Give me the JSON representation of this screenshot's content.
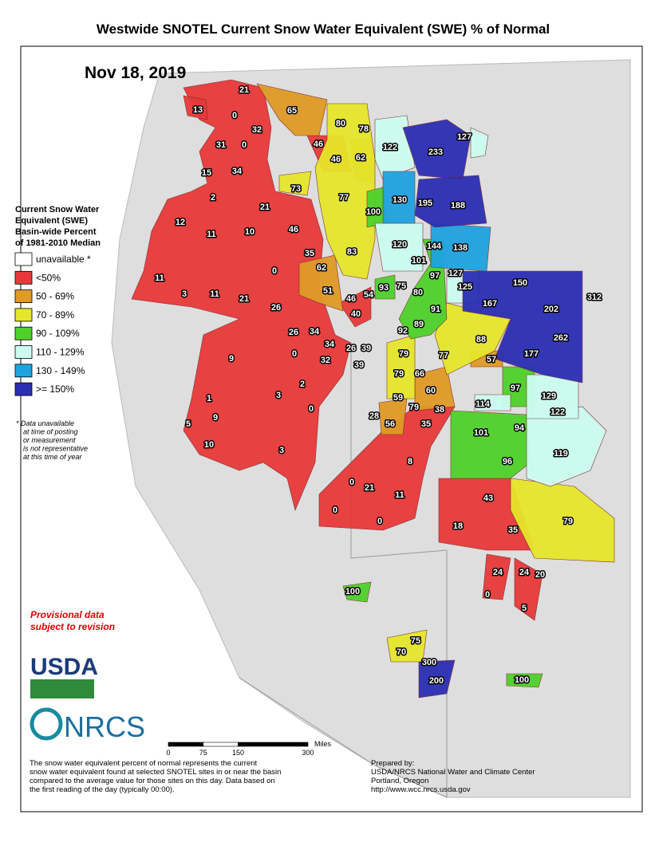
{
  "title": "Westwide SNOTEL Current Snow Water Equivalent (SWE) % of Normal",
  "date": "Nov 18, 2019",
  "legend": {
    "title": [
      "Current Snow Water",
      "Equivalent (SWE)",
      "Basin-wide Percent",
      "of 1981-2010 Median"
    ],
    "items": [
      {
        "label": "unavailable *",
        "color": "#ffffff"
      },
      {
        "label": "<50%",
        "color": "#e8393a"
      },
      {
        "label": "50 - 69%",
        "color": "#e09a27"
      },
      {
        "label": "70 - 89%",
        "color": "#e6e62a"
      },
      {
        "label": "90 - 109%",
        "color": "#4fd12a"
      },
      {
        "label": "110 - 129%",
        "color": "#cdfcf0"
      },
      {
        "label": "130 - 149%",
        "color": "#1fa3df"
      },
      {
        "label": ">= 150%",
        "color": "#2b2fb3"
      }
    ]
  },
  "note": [
    "*  Data unavailable",
    "at time of posting",
    "or measurement",
    "is not representative",
    "at this time of year"
  ],
  "provisional": [
    "Provisional data",
    "subject to revision"
  ],
  "logos": [
    "USDA",
    "NRCS"
  ],
  "scale": {
    "unit": "Miles",
    "ticks": [
      0,
      75,
      150,
      300
    ]
  },
  "footer": [
    "The snow water equivalent percent of normal represents the current",
    "snow water equivalent found at selected SNOTEL sites in or near the basin",
    "compared to the average value for those sites on this day. Data based on",
    "the first reading of the day (typically 00:00)."
  ],
  "credits": [
    "Prepared by:",
    "USDA/NRCS National Water and Climate Center",
    "Portland, Oregon",
    "http://www.wcc.nrcs.usda.gov"
  ],
  "basins": [
    13,
    21,
    65,
    0,
    32,
    80,
    78,
    122,
    233,
    127,
    31,
    0,
    46,
    46,
    62,
    15,
    34,
    73,
    77,
    130,
    195,
    188,
    2,
    21,
    100,
    12,
    11,
    10,
    46,
    120,
    144,
    138,
    35,
    83,
    101,
    0,
    62,
    97,
    127,
    150,
    11,
    51,
    93,
    75,
    80,
    125,
    3,
    11,
    21,
    46,
    54,
    167,
    202,
    312,
    26,
    40,
    91,
    89,
    92,
    88,
    262,
    26,
    34,
    34,
    26,
    39,
    0,
    9,
    79,
    77,
    57,
    177,
    32,
    39,
    79,
    66,
    2,
    97,
    60,
    129,
    1,
    3,
    59,
    114,
    79,
    38,
    122,
    0,
    9,
    28,
    5,
    56,
    35,
    101,
    94,
    10,
    3,
    119,
    96,
    8,
    0,
    21,
    11,
    43,
    0,
    0,
    79,
    18,
    35,
    24,
    24,
    20,
    100,
    0,
    5,
    75,
    70,
    300,
    200,
    100
  ]
}
